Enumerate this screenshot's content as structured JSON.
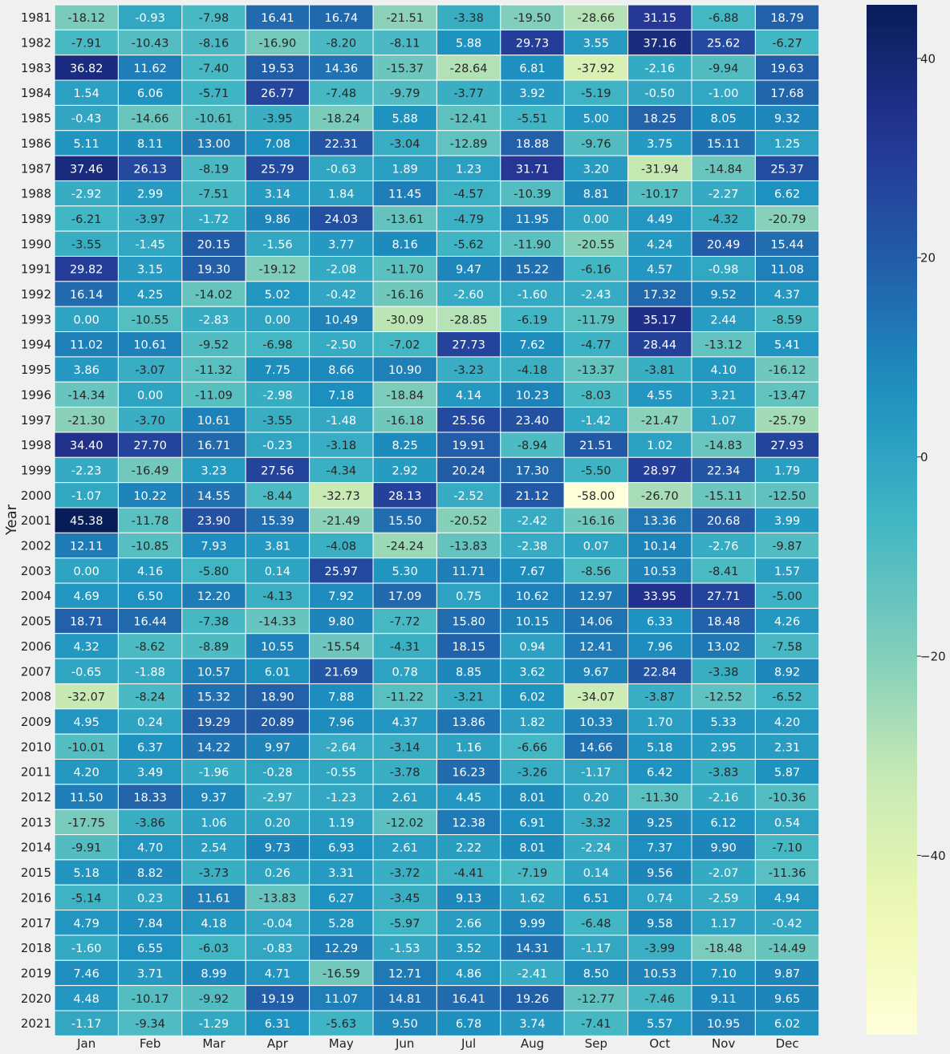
{
  "chart_data": {
    "type": "heatmap",
    "title": "",
    "xlabel": "",
    "ylabel": "Year",
    "columns": [
      "Jan",
      "Feb",
      "Mar",
      "Apr",
      "May",
      "Jun",
      "Jul",
      "Aug",
      "Sep",
      "Oct",
      "Nov",
      "Dec"
    ],
    "rows": [
      "1981",
      "1982",
      "1983",
      "1984",
      "1985",
      "1986",
      "1987",
      "1988",
      "1989",
      "1990",
      "1991",
      "1992",
      "1993",
      "1994",
      "1995",
      "1996",
      "1997",
      "1998",
      "1999",
      "2000",
      "2001",
      "2002",
      "2003",
      "2004",
      "2005",
      "2006",
      "2007",
      "2008",
      "2009",
      "2010",
      "2011",
      "2012",
      "2013",
      "2014",
      "2015",
      "2016",
      "2017",
      "2018",
      "2019",
      "2020",
      "2021"
    ],
    "values": [
      [
        -18.12,
        -0.93,
        -7.98,
        16.41,
        16.74,
        -21.51,
        -3.38,
        -19.5,
        -28.66,
        31.15,
        -6.88,
        18.79
      ],
      [
        -7.91,
        -10.43,
        -8.16,
        -16.9,
        -8.2,
        -8.11,
        5.88,
        29.73,
        3.55,
        37.16,
        25.62,
        -6.27
      ],
      [
        36.82,
        11.62,
        -7.4,
        19.53,
        14.36,
        -15.37,
        -28.64,
        6.81,
        -37.92,
        -2.16,
        -9.94,
        19.63
      ],
      [
        1.54,
        6.06,
        -5.71,
        26.77,
        -7.48,
        -9.79,
        -3.77,
        3.92,
        -5.19,
        -0.5,
        -1.0,
        17.68
      ],
      [
        -0.43,
        -14.66,
        -10.61,
        -3.95,
        -18.24,
        5.88,
        -12.41,
        -5.51,
        5.0,
        18.25,
        8.05,
        9.32
      ],
      [
        5.11,
        8.11,
        13.0,
        7.08,
        22.31,
        -3.04,
        -12.89,
        18.88,
        -9.76,
        3.75,
        15.11,
        1.25
      ],
      [
        37.46,
        26.13,
        -8.19,
        25.79,
        -0.63,
        1.89,
        1.23,
        31.71,
        3.2,
        -31.94,
        -14.84,
        25.37
      ],
      [
        -2.92,
        2.99,
        -7.51,
        3.14,
        1.84,
        11.45,
        -4.57,
        -10.39,
        8.81,
        -10.17,
        -2.27,
        6.62
      ],
      [
        -6.21,
        -3.97,
        -1.72,
        9.86,
        24.03,
        -13.61,
        -4.79,
        11.95,
        0.0,
        4.49,
        -4.32,
        -20.79
      ],
      [
        -3.55,
        -1.45,
        20.15,
        -1.56,
        3.77,
        8.16,
        -5.62,
        -11.9,
        -20.55,
        4.24,
        20.49,
        15.44
      ],
      [
        29.82,
        3.15,
        19.3,
        -19.12,
        -2.08,
        -11.7,
        9.47,
        15.22,
        -6.16,
        4.57,
        -0.98,
        11.08
      ],
      [
        16.14,
        4.25,
        -14.02,
        5.02,
        -0.42,
        -16.16,
        -2.6,
        -1.6,
        -2.43,
        17.32,
        9.52,
        4.37
      ],
      [
        0.0,
        -10.55,
        -2.83,
        0.0,
        10.49,
        -30.09,
        -28.85,
        -6.19,
        -11.79,
        35.17,
        2.44,
        -8.59
      ],
      [
        11.02,
        10.61,
        -9.52,
        -6.98,
        -2.5,
        -7.02,
        27.73,
        7.62,
        -4.77,
        28.44,
        -13.12,
        5.41
      ],
      [
        3.86,
        -3.07,
        -11.32,
        7.75,
        8.66,
        10.9,
        -3.23,
        -4.18,
        -13.37,
        -3.81,
        4.1,
        -16.12
      ],
      [
        -14.34,
        0.0,
        -11.09,
        -2.98,
        7.18,
        -18.84,
        4.14,
        10.23,
        -8.03,
        4.55,
        3.21,
        -13.47
      ],
      [
        -21.3,
        -3.7,
        10.61,
        -3.55,
        -1.48,
        -16.18,
        25.56,
        23.4,
        -1.42,
        -21.47,
        1.07,
        -25.79
      ],
      [
        34.4,
        27.7,
        16.71,
        -0.23,
        -3.18,
        8.25,
        19.91,
        -8.94,
        21.51,
        1.02,
        -14.83,
        27.93
      ],
      [
        -2.23,
        -16.49,
        3.23,
        27.56,
        -4.34,
        2.92,
        20.24,
        17.3,
        -5.5,
        28.97,
        22.34,
        1.79
      ],
      [
        -1.07,
        10.22,
        14.55,
        -8.44,
        -32.73,
        28.13,
        -2.52,
        21.12,
        -58.0,
        -26.7,
        -15.11,
        -12.5
      ],
      [
        45.38,
        -11.78,
        23.9,
        15.39,
        -21.49,
        15.5,
        -20.52,
        -2.42,
        -16.16,
        13.36,
        20.68,
        3.99
      ],
      [
        12.11,
        -10.85,
        7.93,
        3.81,
        -4.08,
        -24.24,
        -13.83,
        -2.38,
        0.07,
        10.14,
        -2.76,
        -9.87
      ],
      [
        0.0,
        4.16,
        -5.8,
        0.14,
        25.97,
        5.3,
        11.71,
        7.67,
        -8.56,
        10.53,
        -8.41,
        1.57
      ],
      [
        4.69,
        6.5,
        12.2,
        -4.13,
        7.92,
        17.09,
        0.75,
        10.62,
        12.97,
        33.95,
        27.71,
        -5.0
      ],
      [
        18.71,
        16.44,
        -7.38,
        -14.33,
        9.8,
        -7.72,
        15.8,
        10.15,
        14.06,
        6.33,
        18.48,
        4.26
      ],
      [
        4.32,
        -8.62,
        -8.89,
        10.55,
        -15.54,
        -4.31,
        18.15,
        0.94,
        12.41,
        7.96,
        13.02,
        -7.58
      ],
      [
        -0.65,
        -1.88,
        10.57,
        6.01,
        21.69,
        0.78,
        8.85,
        3.62,
        9.67,
        22.84,
        -3.38,
        8.92
      ],
      [
        -32.07,
        -8.24,
        15.32,
        18.9,
        7.88,
        -11.22,
        -3.21,
        6.02,
        -34.07,
        -3.87,
        -12.52,
        -6.52
      ],
      [
        4.95,
        0.24,
        19.29,
        20.89,
        7.96,
        4.37,
        13.86,
        1.82,
        10.33,
        1.7,
        5.33,
        4.2
      ],
      [
        -10.01,
        6.37,
        14.22,
        9.97,
        -2.64,
        -3.14,
        1.16,
        -6.66,
        14.66,
        5.18,
        2.95,
        2.31
      ],
      [
        4.2,
        3.49,
        -1.96,
        -0.28,
        -0.55,
        -3.78,
        16.23,
        -3.26,
        -1.17,
        6.42,
        -3.83,
        5.87
      ],
      [
        11.5,
        18.33,
        9.37,
        -2.97,
        -1.23,
        2.61,
        4.45,
        8.01,
        0.2,
        -11.3,
        -2.16,
        -10.36
      ],
      [
        -17.75,
        -3.86,
        1.06,
        0.2,
        1.19,
        -12.02,
        12.38,
        6.91,
        -3.32,
        9.25,
        6.12,
        0.54
      ],
      [
        -9.91,
        4.7,
        2.54,
        9.73,
        6.93,
        2.61,
        2.22,
        8.01,
        -2.24,
        7.37,
        9.9,
        -7.1
      ],
      [
        5.18,
        8.82,
        -3.73,
        0.26,
        3.31,
        -3.72,
        -4.41,
        -7.19,
        0.14,
        9.56,
        -2.07,
        -11.36
      ],
      [
        -5.14,
        0.23,
        11.61,
        -13.83,
        6.27,
        -3.45,
        9.13,
        1.62,
        6.51,
        0.74,
        -2.59,
        4.94
      ],
      [
        4.79,
        7.84,
        4.18,
        -0.04,
        5.28,
        -5.97,
        2.66,
        9.99,
        -6.48,
        9.58,
        1.17,
        -0.42
      ],
      [
        -1.6,
        6.55,
        -6.03,
        -0.83,
        12.29,
        -1.53,
        3.52,
        14.31,
        -1.17,
        -3.99,
        -18.48,
        -14.49
      ],
      [
        7.46,
        3.71,
        8.99,
        4.71,
        -16.59,
        12.71,
        4.86,
        -2.41,
        8.5,
        10.53,
        7.1,
        9.87
      ],
      [
        4.48,
        -10.17,
        -9.92,
        19.19,
        11.07,
        14.81,
        16.41,
        19.26,
        -12.77,
        -7.46,
        9.11,
        9.65
      ],
      [
        -1.17,
        -9.34,
        -1.29,
        6.31,
        -5.63,
        9.5,
        6.78,
        3.74,
        -7.41,
        5.57,
        10.95,
        6.02
      ]
    ],
    "colorbar": {
      "range": [
        -58.0,
        45.38
      ],
      "ticks": [
        -40,
        -20,
        0,
        20,
        40
      ],
      "tick_labels": [
        "−40",
        "−20",
        "0",
        "20",
        "40"
      ],
      "colormap": "YlGnBu"
    },
    "annotations": true,
    "grid": false,
    "legend": "colorbar-right"
  }
}
